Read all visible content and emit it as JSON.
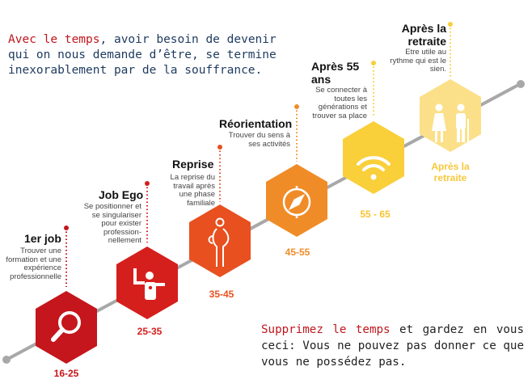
{
  "intro": {
    "highlight": "Avec le temps",
    "rest": ", avoir besoin de devenir qui on nous demande d’être, se termine inexorablement par de la souffrance."
  },
  "outro": {
    "highlight": "Supprimez le temps",
    "rest": " et gardez en vous ceci: Vous ne pouvez pas donner ce que vous ne possédez pas."
  },
  "colors": {
    "stage1": "#c4161c",
    "stage2": "#d51f1c",
    "stage3": "#e8501f",
    "stage4": "#f08c28",
    "stage5": "#f9cf3a",
    "stage6": "#fbe089",
    "line": "#a8a8a8",
    "intro_text": "#1e3a5f",
    "highlight": "#c0161c"
  },
  "stages": [
    {
      "title": "1er job",
      "description": "Trouver une formation et une expérience professionnelle",
      "age": "16-25",
      "icon": "magnifier-icon"
    },
    {
      "title": "Job Ego",
      "description": "Se positionner et se singulariser pour exister profession-nellement",
      "age": "25-35",
      "icon": "presenter-icon"
    },
    {
      "title": "Reprise",
      "description": "La reprise du travail après une phase familiale",
      "age": "35-45",
      "icon": "pregnant-woman-icon"
    },
    {
      "title": "Réorientation",
      "description": "Trouver du sens à ses activités",
      "age": "45-55",
      "icon": "compass-icon"
    },
    {
      "title": "Après 55 ans",
      "description": "Se connecter à toutes les générations et trouver sa place",
      "age": "55 - 65",
      "icon": "wifi-icon"
    },
    {
      "title": "Après la retraite",
      "description": "Etre utile au rythme qui est le sien.",
      "age": "Après la retraite",
      "icon": "elderly-couple-icon"
    }
  ]
}
